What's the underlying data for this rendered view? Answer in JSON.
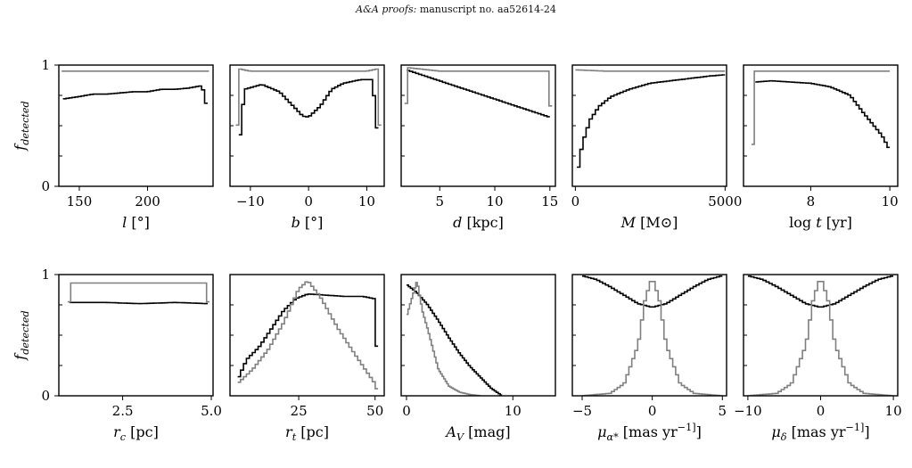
{
  "header": {
    "journal": "A&A proofs:",
    "manuscript": "manuscript no. aa52614-24"
  },
  "colors": {
    "detected": "#000000",
    "injected": "#808080",
    "frame": "#000000"
  },
  "chart_data": [
    {
      "type": "line",
      "xlabel": "l [°]",
      "ylabel": "f_detected",
      "xlim": [
        135,
        248
      ],
      "ylim": [
        0,
        1
      ],
      "xticks": [
        "150",
        "200"
      ],
      "xtick_values": [
        150,
        200
      ],
      "yticks": [
        "0",
        "1"
      ],
      "series": [
        {
          "x": [
            138,
            150,
            160,
            170,
            180,
            190,
            200,
            210,
            220,
            230,
            240,
            244
          ],
          "values": [
            0.72,
            0.74,
            0.76,
            0.76,
            0.77,
            0.78,
            0.78,
            0.8,
            0.8,
            0.81,
            0.83,
            0.63
          ]
        },
        {
          "x": [
            137,
            138,
            150,
            200,
            244,
            245
          ],
          "values": [
            0.0,
            0.95,
            0.95,
            0.95,
            0.95,
            0.0
          ]
        }
      ]
    },
    {
      "type": "line",
      "xlabel": "b [°]",
      "ylabel": "",
      "xlim": [
        -13.5,
        13.0
      ],
      "ylim": [
        0,
        1
      ],
      "xticks": [
        "−10",
        "0",
        "10"
      ],
      "xtick_values": [
        -10,
        0,
        10
      ],
      "yticks": [],
      "series": [
        {
          "x": [
            -12,
            -11,
            -8,
            -5,
            -3,
            -1,
            0,
            2,
            4,
            6,
            9,
            11,
            12
          ],
          "values": [
            0.3,
            0.8,
            0.84,
            0.78,
            0.68,
            0.58,
            0.57,
            0.66,
            0.8,
            0.85,
            0.88,
            0.88,
            0.35
          ]
        },
        {
          "x": [
            -12.5,
            -12,
            -10,
            0,
            10,
            12,
            12.5
          ],
          "values": [
            0.0,
            0.97,
            0.95,
            0.95,
            0.95,
            0.97,
            0.0
          ]
        }
      ]
    },
    {
      "type": "line",
      "xlabel": "d [kpc]",
      "ylabel": "",
      "xlim": [
        1.5,
        15.5
      ],
      "ylim": [
        0,
        1
      ],
      "xticks": [
        "5",
        "10",
        "15"
      ],
      "xtick_values": [
        5,
        10,
        15
      ],
      "yticks": [],
      "series": [
        {
          "x": [
            2,
            4,
            6,
            8,
            10,
            12,
            14,
            15
          ],
          "values": [
            0.96,
            0.9,
            0.84,
            0.78,
            0.72,
            0.66,
            0.6,
            0.57
          ]
        },
        {
          "x": [
            1.8,
            2,
            5,
            10,
            15,
            15.2
          ],
          "values": [
            0.0,
            0.98,
            0.95,
            0.95,
            0.95,
            0.0
          ]
        }
      ]
    },
    {
      "type": "line",
      "xlabel": "M [M⊙]",
      "ylabel": "",
      "xlim": [
        -100,
        5050
      ],
      "ylim": [
        0,
        1
      ],
      "xticks": [
        "0",
        "5000"
      ],
      "xtick_values": [
        0,
        5000
      ],
      "yticks": [],
      "series": [
        {
          "x": [
            50,
            150,
            300,
            500,
            800,
            1200,
            1800,
            2500,
            3500,
            4500,
            5000
          ],
          "values": [
            0.06,
            0.25,
            0.4,
            0.55,
            0.66,
            0.74,
            0.8,
            0.85,
            0.88,
            0.91,
            0.92
          ]
        },
        {
          "x": [
            0,
            50,
            1000,
            2500,
            4000,
            5000
          ],
          "values": [
            0.0,
            0.96,
            0.95,
            0.95,
            0.95,
            0.95
          ]
        }
      ]
    },
    {
      "type": "line",
      "xlabel": "log t [yr]",
      "ylabel": "",
      "xlim": [
        6.3,
        10.2
      ],
      "ylim": [
        0,
        1
      ],
      "xticks": [
        "8",
        "10"
      ],
      "xtick_values": [
        8,
        10
      ],
      "yticks": [],
      "series": [
        {
          "x": [
            6.6,
            7.0,
            7.5,
            8.0,
            8.5,
            9.0,
            9.3,
            9.6,
            9.8,
            10.0
          ],
          "values": [
            0.86,
            0.87,
            0.86,
            0.85,
            0.82,
            0.75,
            0.62,
            0.5,
            0.42,
            0.3
          ]
        },
        {
          "x": [
            6.5,
            6.6,
            7.5,
            8.5,
            10.0
          ],
          "values": [
            0.0,
            0.95,
            0.95,
            0.95,
            0.95
          ]
        }
      ]
    },
    {
      "type": "line",
      "xlabel": "r_c [pc]",
      "ylabel": "f_detected",
      "xlim": [
        0.7,
        5.05
      ],
      "ylim": [
        0,
        1
      ],
      "xticks": [
        "2.5",
        "5.0"
      ],
      "xtick_values": [
        2.5,
        5.0
      ],
      "yticks": [
        "0",
        "1"
      ],
      "series": [
        {
          "x": [
            1.0,
            2.0,
            3.0,
            4.0,
            4.9
          ],
          "values": [
            0.77,
            0.77,
            0.76,
            0.77,
            0.76
          ]
        },
        {
          "x": [
            0.95,
            1.0,
            2.5,
            4.9,
            4.95
          ],
          "values": [
            0.0,
            0.93,
            0.93,
            0.93,
            0.0
          ]
        }
      ]
    },
    {
      "type": "line",
      "xlabel": "r_t [pc]",
      "ylabel": "",
      "xlim": [
        2.5,
        53
      ],
      "ylim": [
        0,
        1
      ],
      "xticks": [
        "25",
        "50"
      ],
      "xtick_values": [
        25,
        50
      ],
      "yticks": [],
      "series": [
        {
          "x": [
            5,
            8,
            12,
            16,
            20,
            24,
            28,
            34,
            40,
            46,
            50,
            51
          ],
          "values": [
            0.13,
            0.3,
            0.4,
            0.55,
            0.7,
            0.8,
            0.84,
            0.83,
            0.82,
            0.82,
            0.8,
            0.05
          ]
        },
        {
          "x": [
            5,
            10,
            15,
            20,
            25,
            28,
            32,
            38,
            44,
            50,
            51
          ],
          "values": [
            0.1,
            0.22,
            0.38,
            0.6,
            0.88,
            0.95,
            0.82,
            0.55,
            0.32,
            0.1,
            0.02
          ]
        }
      ]
    },
    {
      "type": "line",
      "xlabel": "A_V [mag]",
      "ylabel": "",
      "xlim": [
        -0.5,
        14
      ],
      "ylim": [
        0,
        1
      ],
      "xticks": [
        "0",
        "10"
      ],
      "xtick_values": [
        0,
        10
      ],
      "yticks": [],
      "series": [
        {
          "x": [
            0,
            1,
            2,
            3,
            4,
            5,
            6,
            7,
            8,
            9
          ],
          "values": [
            0.92,
            0.85,
            0.75,
            0.62,
            0.48,
            0.35,
            0.24,
            0.15,
            0.06,
            0.0
          ]
        },
        {
          "x": [
            0,
            1,
            1.5,
            2,
            3,
            4,
            5,
            6,
            7
          ],
          "values": [
            0.65,
            0.95,
            0.7,
            0.55,
            0.22,
            0.08,
            0.03,
            0.01,
            0.0
          ]
        }
      ]
    },
    {
      "type": "line",
      "xlabel": "μ_α* [mas yr^−1]",
      "ylabel": "",
      "xlim": [
        -5.7,
        5.3
      ],
      "ylim": [
        0,
        1
      ],
      "xticks": [
        "−5",
        "0",
        "5"
      ],
      "xtick_values": [
        -5,
        0,
        5
      ],
      "yticks": [],
      "series": [
        {
          "x": [
            -5,
            -4,
            -3,
            -2,
            -1,
            0,
            1,
            2,
            3,
            4,
            5
          ],
          "values": [
            0.99,
            0.96,
            0.9,
            0.83,
            0.76,
            0.73,
            0.76,
            0.83,
            0.9,
            0.96,
            0.99
          ]
        },
        {
          "x": [
            -5,
            -3,
            -2,
            -1,
            -0.5,
            0,
            0.5,
            1,
            2,
            3,
            5
          ],
          "values": [
            0.0,
            0.02,
            0.1,
            0.42,
            0.8,
            0.98,
            0.8,
            0.42,
            0.1,
            0.02,
            0.0
          ]
        }
      ]
    },
    {
      "type": "line",
      "xlabel": "μ_δ [mas yr^−1]",
      "ylabel": "",
      "xlim": [
        -10.6,
        10.6
      ],
      "ylim": [
        0,
        1
      ],
      "xticks": [
        "−10",
        "0",
        "10"
      ],
      "xtick_values": [
        -10,
        0,
        10
      ],
      "yticks": [],
      "series": [
        {
          "x": [
            -10,
            -8,
            -6,
            -4,
            -2,
            0,
            2,
            4,
            6,
            8,
            10
          ],
          "values": [
            0.99,
            0.96,
            0.9,
            0.83,
            0.76,
            0.73,
            0.76,
            0.83,
            0.9,
            0.96,
            0.99
          ]
        },
        {
          "x": [
            -10,
            -6,
            -4,
            -2,
            -1,
            0,
            1,
            2,
            4,
            6,
            10
          ],
          "values": [
            0.0,
            0.02,
            0.1,
            0.42,
            0.8,
            0.98,
            0.8,
            0.42,
            0.1,
            0.02,
            0.0
          ]
        }
      ]
    }
  ]
}
